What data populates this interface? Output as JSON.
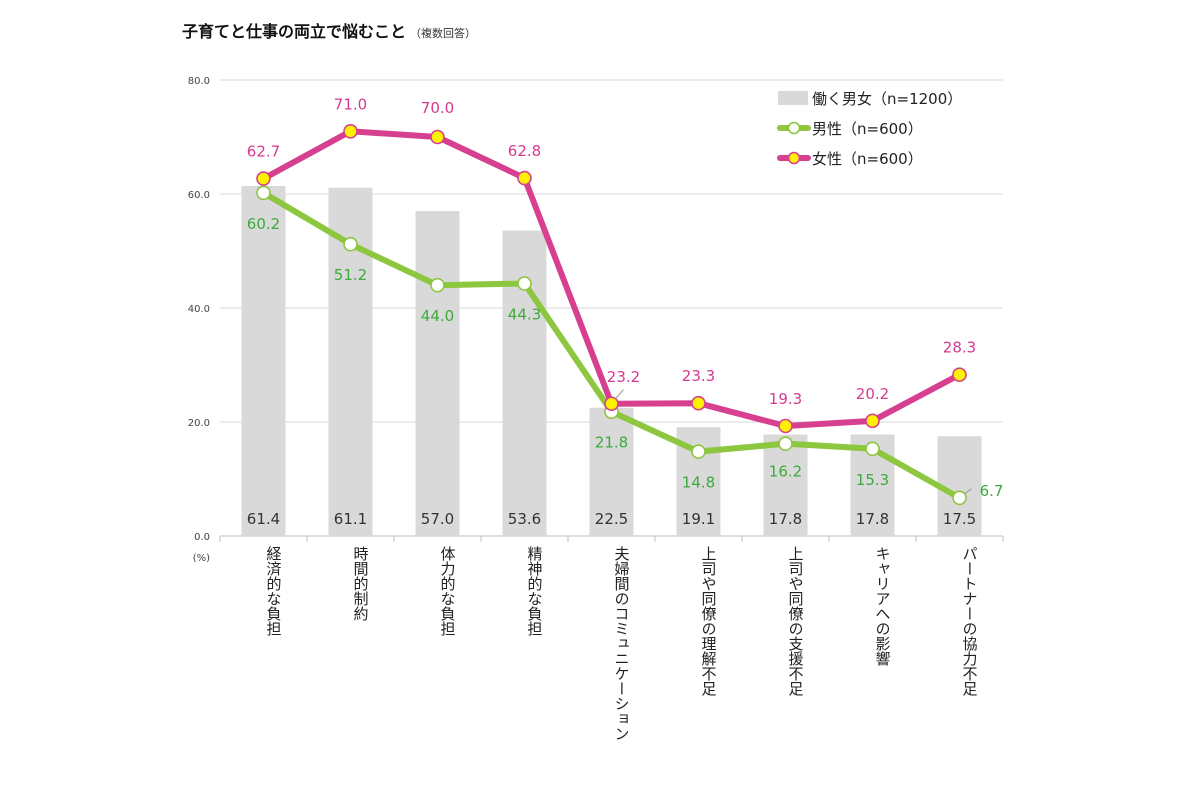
{
  "header": {
    "title": "子育てと仕事の両立で悩むこと",
    "subtitle": "（複数回答）"
  },
  "chart_data": {
    "type": "bar",
    "categories": [
      "経済的な負担",
      "時間的制約",
      "体力的な負担",
      "精神的な負担",
      "夫婦間のコミュニケーション",
      "上司や同僚の理解不足",
      "上司や同僚の支援不足",
      "キャリアへの影響",
      "パートナーの協力不足"
    ],
    "series": [
      {
        "name": "働く男女（n=1200）",
        "type": "bar",
        "values": [
          61.4,
          61.1,
          57.0,
          53.6,
          22.5,
          19.1,
          17.8,
          17.8,
          17.5
        ],
        "labels": [
          "61.4",
          "61.1",
          "57.0",
          "53.6",
          "22.5",
          "19.1",
          "17.8",
          "17.8",
          "17.5"
        ],
        "color": "#d9d9d9"
      },
      {
        "name": "男性（n=600）",
        "type": "line",
        "values": [
          60.2,
          51.2,
          44.0,
          44.3,
          21.8,
          14.8,
          16.2,
          15.3,
          6.7
        ],
        "labels": [
          "60.2",
          "51.2",
          "44.0",
          "44.3",
          "21.8",
          "14.8",
          "16.2",
          "15.3",
          "6.7"
        ],
        "color": "#8dc63f"
      },
      {
        "name": "女性（n=600）",
        "type": "line",
        "values": [
          62.7,
          71.0,
          70.0,
          62.8,
          23.2,
          23.3,
          19.3,
          20.2,
          28.3
        ],
        "labels": [
          "62.7",
          "71.0",
          "70.0",
          "62.8",
          "23.2",
          "23.3",
          "19.3",
          "20.2",
          "28.3"
        ],
        "color": "#d6408f"
      }
    ],
    "yticks": [
      "80.0",
      "60.0",
      "40.0",
      "20.0",
      "0.0"
    ],
    "yunit": "(%)",
    "ylim": [
      0,
      80
    ],
    "grid": true,
    "legend": "top-right"
  }
}
